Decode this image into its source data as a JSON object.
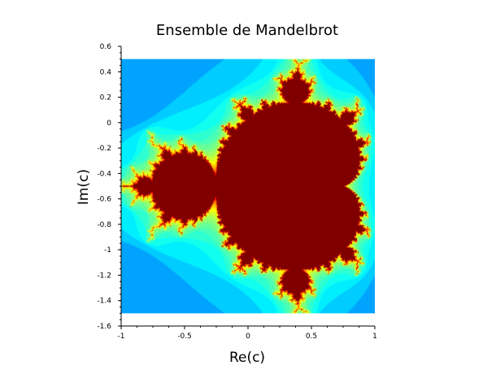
{
  "chart_data": {
    "type": "heatmap",
    "title": "Ensemble de Mandelbrot",
    "xlabel": "Re(c)",
    "ylabel": "Im(c)",
    "xlim": [
      -1,
      1
    ],
    "ylim": [
      -1.6,
      0.6
    ],
    "x_ticks": [
      -1,
      -0.5,
      0,
      0.5,
      1
    ],
    "x_tick_labels": [
      "-1",
      "-0.5",
      "0",
      "0.5",
      "1"
    ],
    "y_ticks": [
      0.6,
      0.4,
      0.2,
      0,
      -0.2,
      -0.4,
      -0.6,
      -0.8,
      -1,
      -1.2,
      -1.4,
      -1.6
    ],
    "y_tick_labels": [
      "0.6",
      "0.4",
      "0.2",
      "0",
      "-0.2",
      "-0.4",
      "-0.6",
      "-0.8",
      "-1",
      "-1.2",
      "-1.4",
      "-1.6"
    ],
    "image_extent": {
      "x": [
        -1,
        1
      ],
      "y": [
        -1.5,
        0.5
      ]
    },
    "colormap": "jet",
    "set_color": "#800000",
    "background_color": "#00008f",
    "grid": false,
    "legend": "none"
  }
}
